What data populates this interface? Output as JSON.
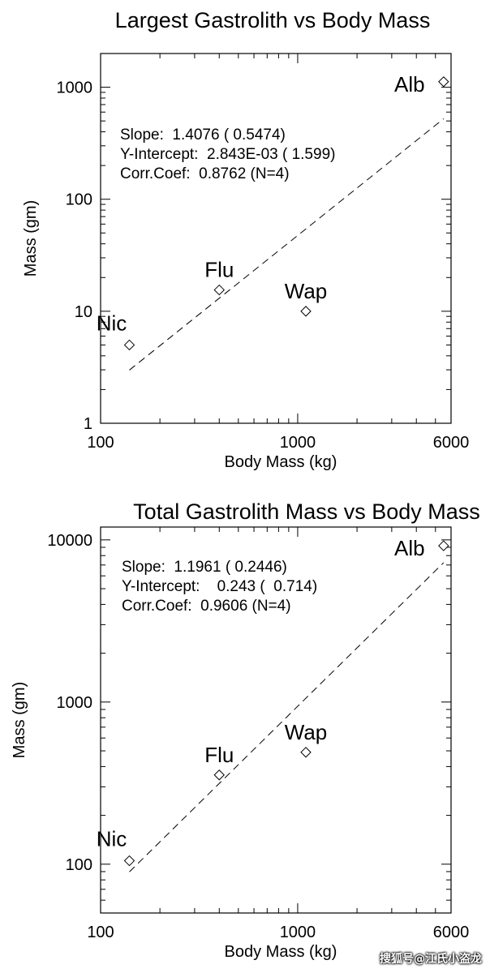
{
  "chart_data": [
    {
      "type": "scatter",
      "title": "Largest Gastrolith vs Body Mass",
      "xlabel": "Body Mass (kg)",
      "ylabel": "Mass (gm)",
      "xscale": "log",
      "yscale": "log",
      "xlim": [
        100,
        6000
      ],
      "ylim": [
        1,
        2000
      ],
      "xticks": [
        {
          "v": 100,
          "label": "100"
        },
        {
          "v": 1000,
          "label": "1000"
        },
        {
          "v": 6000,
          "label": "6000"
        }
      ],
      "yticks": [
        {
          "v": 1,
          "label": "1"
        },
        {
          "v": 10,
          "label": "10"
        },
        {
          "v": 100,
          "label": "100"
        },
        {
          "v": 1000,
          "label": "1000"
        }
      ],
      "points": [
        {
          "label": "Nic",
          "x": 140,
          "y": 5
        },
        {
          "label": "Flu",
          "x": 400,
          "y": 15.5
        },
        {
          "label": "Wap",
          "x": 1100,
          "y": 10
        },
        {
          "label": "Alb",
          "x": 5500,
          "y": 1120
        }
      ],
      "fit": {
        "slope": 1.4076,
        "intercept": 0.002843,
        "x_range": [
          140,
          5500
        ]
      },
      "stats": [
        "Slope:  1.4076 ( 0.5474)",
        "Y-Intercept:  2.843E-03 ( 1.599)",
        "Corr.Coef:  0.8762 (N=4)"
      ]
    },
    {
      "type": "scatter",
      "title": "Total Gastrolith Mass vs Body Mass",
      "xlabel": "Body Mass (kg)",
      "ylabel": "Mass (gm)",
      "xscale": "log",
      "yscale": "log",
      "xlim": [
        100,
        6000
      ],
      "ylim": [
        50,
        12000
      ],
      "xticks": [
        {
          "v": 100,
          "label": "100"
        },
        {
          "v": 1000,
          "label": "1000"
        },
        {
          "v": 6000,
          "label": "6000"
        }
      ],
      "yticks": [
        {
          "v": 100,
          "label": "100"
        },
        {
          "v": 1000,
          "label": "1000"
        },
        {
          "v": 10000,
          "label": "10000"
        }
      ],
      "points": [
        {
          "label": "Nic",
          "x": 140,
          "y": 105
        },
        {
          "label": "Flu",
          "x": 400,
          "y": 355
        },
        {
          "label": "Wap",
          "x": 1100,
          "y": 490
        },
        {
          "label": "Alb",
          "x": 5500,
          "y": 9200
        }
      ],
      "fit": {
        "slope": 1.1961,
        "intercept": 0.243,
        "x_range": [
          140,
          5500
        ]
      },
      "stats": [
        "Slope:  1.1961 ( 0.2446)",
        "Y-Intercept:    0.243 (  0.714)",
        "Corr.Coef:  0.9606 (N=4)"
      ]
    }
  ],
  "watermark": "搜狐号@江氏小盗龙"
}
